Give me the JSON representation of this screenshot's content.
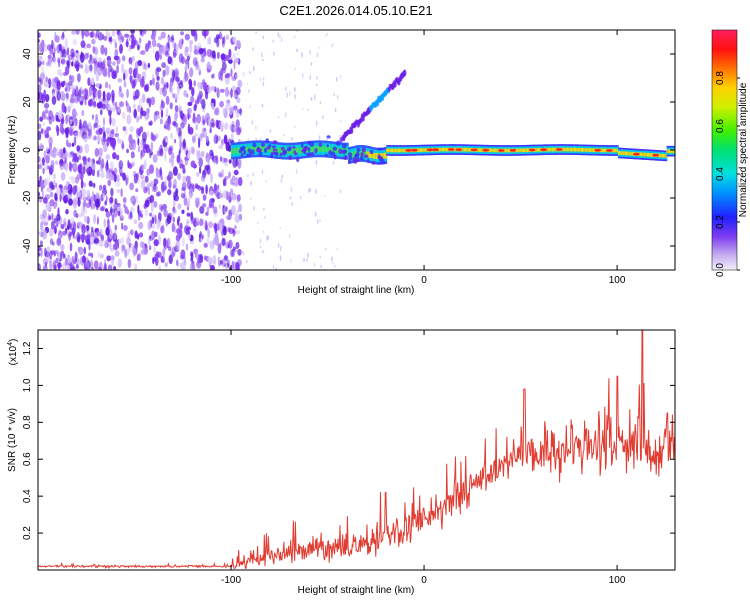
{
  "title": "C2E1.2026.014.05.10.E21",
  "chart_data": [
    {
      "type": "heatmap",
      "name": "spectrogram",
      "xlabel": "Height of straight line (km)",
      "ylabel": "Frequency (Hz)",
      "xlim": [
        -200,
        130
      ],
      "ylim": [
        -50,
        50
      ],
      "x_ticks": [
        -100,
        0,
        100
      ],
      "y_ticks": [
        -40,
        -20,
        0,
        20,
        40
      ],
      "colorbar": {
        "label": "Normalized spectral amplitude",
        "range": [
          0,
          1
        ],
        "ticks": [
          0.0,
          0.2,
          0.4,
          0.6,
          0.8
        ]
      },
      "features": [
        {
          "name": "noise-region",
          "x_range": [
            -200,
            -98
          ],
          "freq_range": [
            -50,
            50
          ],
          "amplitude": "low (0.1-0.3)"
        },
        {
          "name": "main-signal-band",
          "x_range": [
            -100,
            130
          ],
          "freq_center": 0,
          "amplitude": "0.3-0.9"
        },
        {
          "name": "rising-branch",
          "x_range": [
            -42,
            -10
          ],
          "freq_range": [
            5,
            32
          ],
          "amplitude": "0.3-0.5"
        }
      ]
    },
    {
      "type": "line",
      "name": "snr",
      "xlabel": "Height of straight line (km)",
      "ylabel": "SNR (10 * v/v)",
      "y_scale_label": "(x10",
      "y_scale_exp": "4",
      "xlim": [
        -200,
        130
      ],
      "ylim": [
        0,
        1.3
      ],
      "x_ticks": [
        -100,
        0,
        100
      ],
      "y_ticks": [
        0.2,
        0.4,
        0.6,
        0.8,
        1.0,
        1.2
      ],
      "y_tick_labels": [
        "0.2",
        "0.4",
        "0.6",
        "0.8",
        "1.0",
        "1.2"
      ],
      "color": "#e03c32",
      "series": [
        {
          "name": "SNR",
          "x": [
            -200,
            -150,
            -100,
            -90,
            -80,
            -60,
            -40,
            -20,
            0,
            20,
            40,
            50,
            60,
            80,
            100,
            113,
            120,
            130
          ],
          "y": [
            0.02,
            0.02,
            0.02,
            0.05,
            0.08,
            0.1,
            0.12,
            0.18,
            0.28,
            0.42,
            0.55,
            0.66,
            0.6,
            0.65,
            0.68,
            0.7,
            0.62,
            0.7
          ]
        }
      ],
      "peaks": [
        {
          "x": -20,
          "y": 0.42
        },
        {
          "x": 52,
          "y": 0.98
        },
        {
          "x": 100,
          "y": 1.05
        },
        {
          "x": 113,
          "y": 1.3
        },
        {
          "x": 126,
          "y": 0.85
        }
      ]
    }
  ]
}
